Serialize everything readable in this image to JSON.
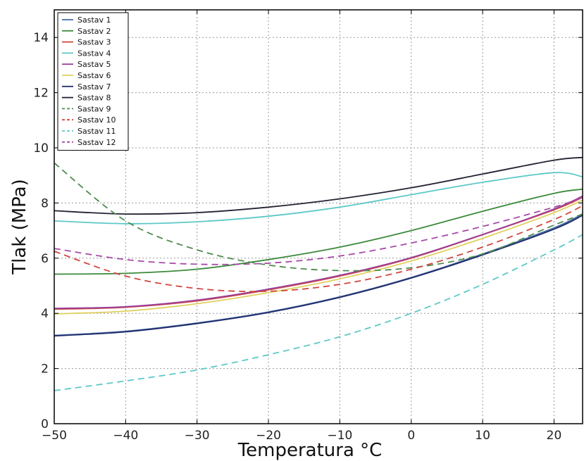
{
  "chart_data": {
    "type": "line",
    "xlabel": "Temperatura °C",
    "ylabel": "Tlak (MPa)",
    "xlim": [
      -50,
      24
    ],
    "ylim": [
      0,
      15
    ],
    "xticks": [
      -50,
      -40,
      -30,
      -20,
      -10,
      0,
      10,
      20
    ],
    "xtick_labels": [
      "−50",
      "−40",
      "−30",
      "−20",
      "−10",
      "0",
      "10",
      "20"
    ],
    "yticks": [
      0,
      2,
      4,
      6,
      8,
      10,
      12,
      14
    ],
    "ytick_labels": [
      "0",
      "2",
      "4",
      "6",
      "8",
      "10",
      "12",
      "14"
    ],
    "grid": true,
    "legend_position": "top-left",
    "x": [
      -50,
      -40,
      -30,
      -20,
      -10,
      0,
      10,
      20,
      24
    ],
    "series": [
      {
        "name": "Sastav 1",
        "color": "#4a6fa5",
        "style": "solid",
        "values": [
          3.2,
          3.35,
          3.65,
          4.05,
          4.6,
          5.3,
          6.15,
          7.1,
          7.6
        ]
      },
      {
        "name": "Sastav 2",
        "color": "#3b8a3b",
        "style": "solid",
        "values": [
          5.42,
          5.45,
          5.6,
          5.95,
          6.4,
          7.0,
          7.7,
          8.35,
          8.5
        ]
      },
      {
        "name": "Sastav 3",
        "color": "#d0463e",
        "style": "solid",
        "values": [
          4.15,
          4.22,
          4.45,
          4.85,
          5.35,
          6.0,
          6.85,
          7.75,
          8.2
        ]
      },
      {
        "name": "Sastav 4",
        "color": "#5ec8c8",
        "style": "solid",
        "values": [
          7.35,
          7.25,
          7.32,
          7.52,
          7.85,
          8.3,
          8.75,
          9.1,
          8.95
        ]
      },
      {
        "name": "Sastav 5",
        "color": "#9b3f9b",
        "style": "solid",
        "values": [
          4.18,
          4.24,
          4.48,
          4.88,
          5.38,
          6.02,
          6.86,
          7.78,
          8.25
        ]
      },
      {
        "name": "Sastav 6",
        "color": "#e0d060",
        "style": "solid",
        "values": [
          3.98,
          4.08,
          4.35,
          4.75,
          5.25,
          5.9,
          6.72,
          7.65,
          8.1
        ]
      },
      {
        "name": "Sastav 7",
        "color": "#1f2a6b",
        "style": "solid",
        "values": [
          3.18,
          3.33,
          3.63,
          4.03,
          4.58,
          5.28,
          6.12,
          7.05,
          7.55
        ]
      },
      {
        "name": "Sastav 8",
        "color": "#222233",
        "style": "solid",
        "values": [
          7.72,
          7.6,
          7.65,
          7.85,
          8.15,
          8.55,
          9.05,
          9.55,
          9.65
        ]
      },
      {
        "name": "Sastav 9",
        "color": "#4e8c4e",
        "style": "dashed",
        "values": [
          9.45,
          7.35,
          6.3,
          5.75,
          5.55,
          5.65,
          6.15,
          7.2,
          7.6
        ]
      },
      {
        "name": "Sastav 10",
        "color": "#d0463e",
        "style": "dashed",
        "values": [
          6.25,
          5.35,
          4.9,
          4.8,
          5.05,
          5.6,
          6.4,
          7.4,
          7.9
        ]
      },
      {
        "name": "Sastav 11",
        "color": "#5ec8c8",
        "style": "dashed",
        "values": [
          1.2,
          1.55,
          1.95,
          2.5,
          3.15,
          4.0,
          5.05,
          6.3,
          6.85
        ]
      },
      {
        "name": "Sastav 12",
        "color": "#a84aa8",
        "style": "dashed",
        "values": [
          6.35,
          5.95,
          5.78,
          5.82,
          6.08,
          6.55,
          7.15,
          7.85,
          8.2
        ]
      }
    ]
  }
}
